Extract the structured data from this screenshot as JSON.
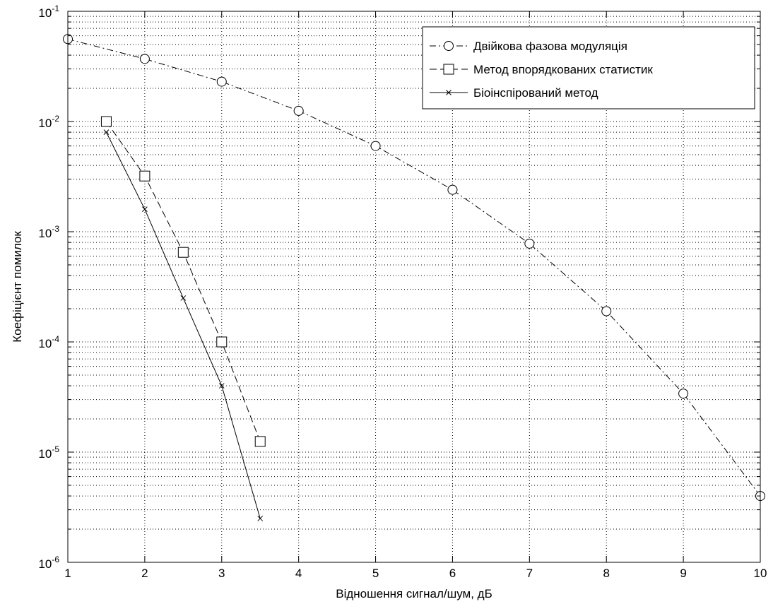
{
  "chart_data": {
    "type": "line",
    "title": "",
    "xlabel": "Відношення сигнал/шум, дБ",
    "ylabel": "Коефіцієнт помилок",
    "xlim": [
      1,
      10
    ],
    "ylim": [
      1e-06,
      0.1
    ],
    "yscale": "log",
    "grid": true,
    "legend_position": "top-right",
    "x_ticks": [
      "1",
      "2",
      "3",
      "4",
      "5",
      "6",
      "7",
      "8",
      "9",
      "10"
    ],
    "y_ticks": [
      {
        "base": "10",
        "exp": "-6"
      },
      {
        "base": "10",
        "exp": "-5"
      },
      {
        "base": "10",
        "exp": "-4"
      },
      {
        "base": "10",
        "exp": "-3"
      },
      {
        "base": "10",
        "exp": "-2"
      },
      {
        "base": "10",
        "exp": "-1"
      }
    ],
    "series": [
      {
        "name": "Двійкова фазова модуляція",
        "line_style": "dash-dot",
        "marker": "circle",
        "color": "#000000",
        "x": [
          1,
          2,
          3,
          4,
          5,
          6,
          7,
          8,
          9,
          10
        ],
        "y": [
          0.056,
          0.037,
          0.023,
          0.0125,
          0.006,
          0.0024,
          0.00078,
          0.00019,
          3.4e-05,
          4e-06
        ]
      },
      {
        "name": "Метод впорядкованих статистик",
        "line_style": "dashed",
        "marker": "square",
        "color": "#000000",
        "x": [
          1.5,
          2,
          2.5,
          3,
          3.5
        ],
        "y": [
          0.01,
          0.0032,
          0.00065,
          0.0001,
          1.25e-05
        ]
      },
      {
        "name": "Біоінспірований метод",
        "line_style": "solid",
        "marker": "x",
        "color": "#000000",
        "x": [
          1.5,
          2,
          2.5,
          3,
          3.5
        ],
        "y": [
          0.008,
          0.0016,
          0.00025,
          4e-05,
          2.5e-06
        ]
      }
    ]
  }
}
